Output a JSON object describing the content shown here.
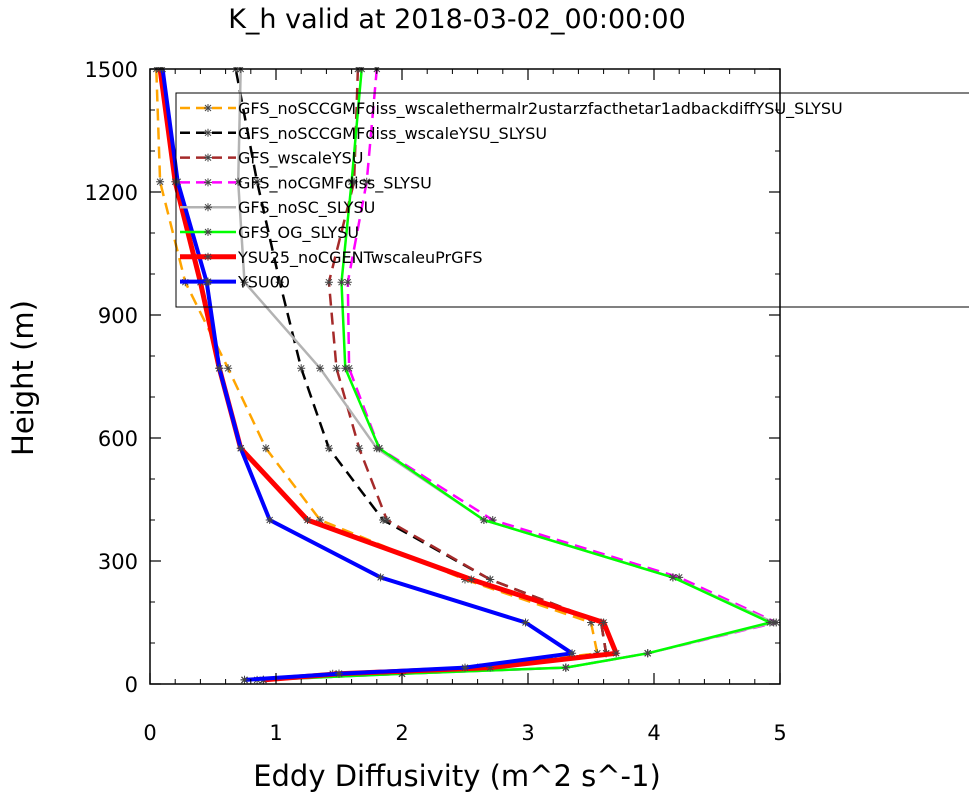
{
  "chart_data": {
    "type": "line",
    "title": "K_h valid at 2018-03-02_00:00:00",
    "xlabel": "Eddy Diffusivity (m^2 s^-1)",
    "ylabel": "Height (m)",
    "xlim": [
      0,
      5
    ],
    "ylim": [
      0,
      1500
    ],
    "xticks": [
      "0",
      "1",
      "2",
      "3",
      "4",
      "5"
    ],
    "yticks": [
      "0",
      "300",
      "600",
      "900",
      "1200",
      "1500"
    ],
    "legend_position": "top-right",
    "series": [
      {
        "name": "GFS_noSCCGMFdiss_wscalethermalr2ustarzfacthetar1adbackdiffYSU_SLYSU",
        "color": "#ffa500",
        "dash": "dashed",
        "marker": "star",
        "width": 2.5,
        "points": [
          [
            0.85,
            10
          ],
          [
            1.45,
            25
          ],
          [
            2.6,
            40
          ],
          [
            3.55,
            75
          ],
          [
            3.5,
            150
          ],
          [
            2.5,
            255
          ],
          [
            1.35,
            400
          ],
          [
            0.92,
            575
          ],
          [
            0.62,
            770
          ],
          [
            0.28,
            980
          ],
          [
            0.08,
            1225
          ],
          [
            0.05,
            1500
          ]
        ]
      },
      {
        "name": "GFS_noSCCGMFdiss_wscaleYSU_SLYSU",
        "color": "#000000",
        "dash": "dashed",
        "marker": "star",
        "width": 2.5,
        "points": [
          [
            0.75,
            10
          ],
          [
            1.5,
            25
          ],
          [
            2.62,
            40
          ],
          [
            3.62,
            75
          ],
          [
            3.58,
            150
          ],
          [
            2.7,
            255
          ],
          [
            1.85,
            400
          ],
          [
            1.42,
            575
          ],
          [
            1.2,
            770
          ],
          [
            1.03,
            980
          ],
          [
            0.85,
            1225
          ],
          [
            0.68,
            1500
          ]
        ]
      },
      {
        "name": "GFS_wscaleYSU",
        "color": "#a52a2a",
        "dash": "dashed",
        "marker": "star",
        "width": 2.5,
        "points": [
          [
            0.75,
            10
          ],
          [
            1.5,
            25
          ],
          [
            2.62,
            40
          ],
          [
            3.62,
            75
          ],
          [
            3.58,
            150
          ],
          [
            2.7,
            255
          ],
          [
            1.88,
            400
          ],
          [
            1.66,
            575
          ],
          [
            1.48,
            770
          ],
          [
            1.42,
            980
          ],
          [
            1.62,
            1225
          ],
          [
            1.65,
            1500
          ]
        ]
      },
      {
        "name": "GFS_noCGMFdiss_SLYSU",
        "color": "#ff00ff",
        "dash": "dashed",
        "marker": "star",
        "width": 2.5,
        "points": [
          [
            0.9,
            10
          ],
          [
            2.0,
            25
          ],
          [
            3.3,
            40
          ],
          [
            3.95,
            75
          ],
          [
            4.97,
            150
          ],
          [
            4.2,
            260
          ],
          [
            2.72,
            400
          ],
          [
            1.82,
            575
          ],
          [
            1.58,
            770
          ],
          [
            1.57,
            980
          ],
          [
            1.72,
            1225
          ],
          [
            1.8,
            1500
          ]
        ]
      },
      {
        "name": "GFS_noSC_SLYSU",
        "color": "#b3b3b3",
        "dash": "solid",
        "marker": "star",
        "width": 2.5,
        "points": [
          [
            0.9,
            10
          ],
          [
            2.0,
            25
          ],
          [
            3.3,
            40
          ],
          [
            3.95,
            75
          ],
          [
            4.95,
            150
          ],
          [
            4.15,
            260
          ],
          [
            2.65,
            400
          ],
          [
            1.8,
            575
          ],
          [
            1.35,
            770
          ],
          [
            0.75,
            980
          ],
          [
            0.7,
            1225
          ],
          [
            0.72,
            1500
          ]
        ]
      },
      {
        "name": "GFS_OG_SLYSU",
        "color": "#00ff00",
        "dash": "solid",
        "marker": "star",
        "width": 2.5,
        "points": [
          [
            0.9,
            10
          ],
          [
            2.0,
            25
          ],
          [
            3.3,
            40
          ],
          [
            3.95,
            75
          ],
          [
            4.92,
            150
          ],
          [
            4.15,
            260
          ],
          [
            2.65,
            400
          ],
          [
            1.82,
            575
          ],
          [
            1.55,
            770
          ],
          [
            1.52,
            980
          ],
          [
            1.6,
            1225
          ],
          [
            1.68,
            1500
          ]
        ]
      },
      {
        "name": "YSU25_noCGENTwscaleuPrGFS",
        "color": "#ff0000",
        "dash": "solid",
        "marker": "star",
        "width": 5,
        "points": [
          [
            0.9,
            10
          ],
          [
            1.5,
            25
          ],
          [
            2.7,
            40
          ],
          [
            3.7,
            75
          ],
          [
            3.6,
            150
          ],
          [
            2.55,
            255
          ],
          [
            1.25,
            400
          ],
          [
            0.72,
            575
          ],
          [
            0.55,
            770
          ],
          [
            0.4,
            980
          ],
          [
            0.2,
            1225
          ],
          [
            0.08,
            1500
          ]
        ]
      },
      {
        "name": "YSU00",
        "color": "#0000ff",
        "dash": "solid",
        "marker": "star",
        "width": 4,
        "points": [
          [
            0.75,
            10
          ],
          [
            1.5,
            25
          ],
          [
            2.5,
            40
          ],
          [
            3.35,
            75
          ],
          [
            2.98,
            150
          ],
          [
            1.83,
            260
          ],
          [
            0.95,
            400
          ],
          [
            0.72,
            575
          ],
          [
            0.55,
            770
          ],
          [
            0.45,
            980
          ],
          [
            0.22,
            1225
          ],
          [
            0.1,
            1500
          ]
        ]
      }
    ]
  }
}
